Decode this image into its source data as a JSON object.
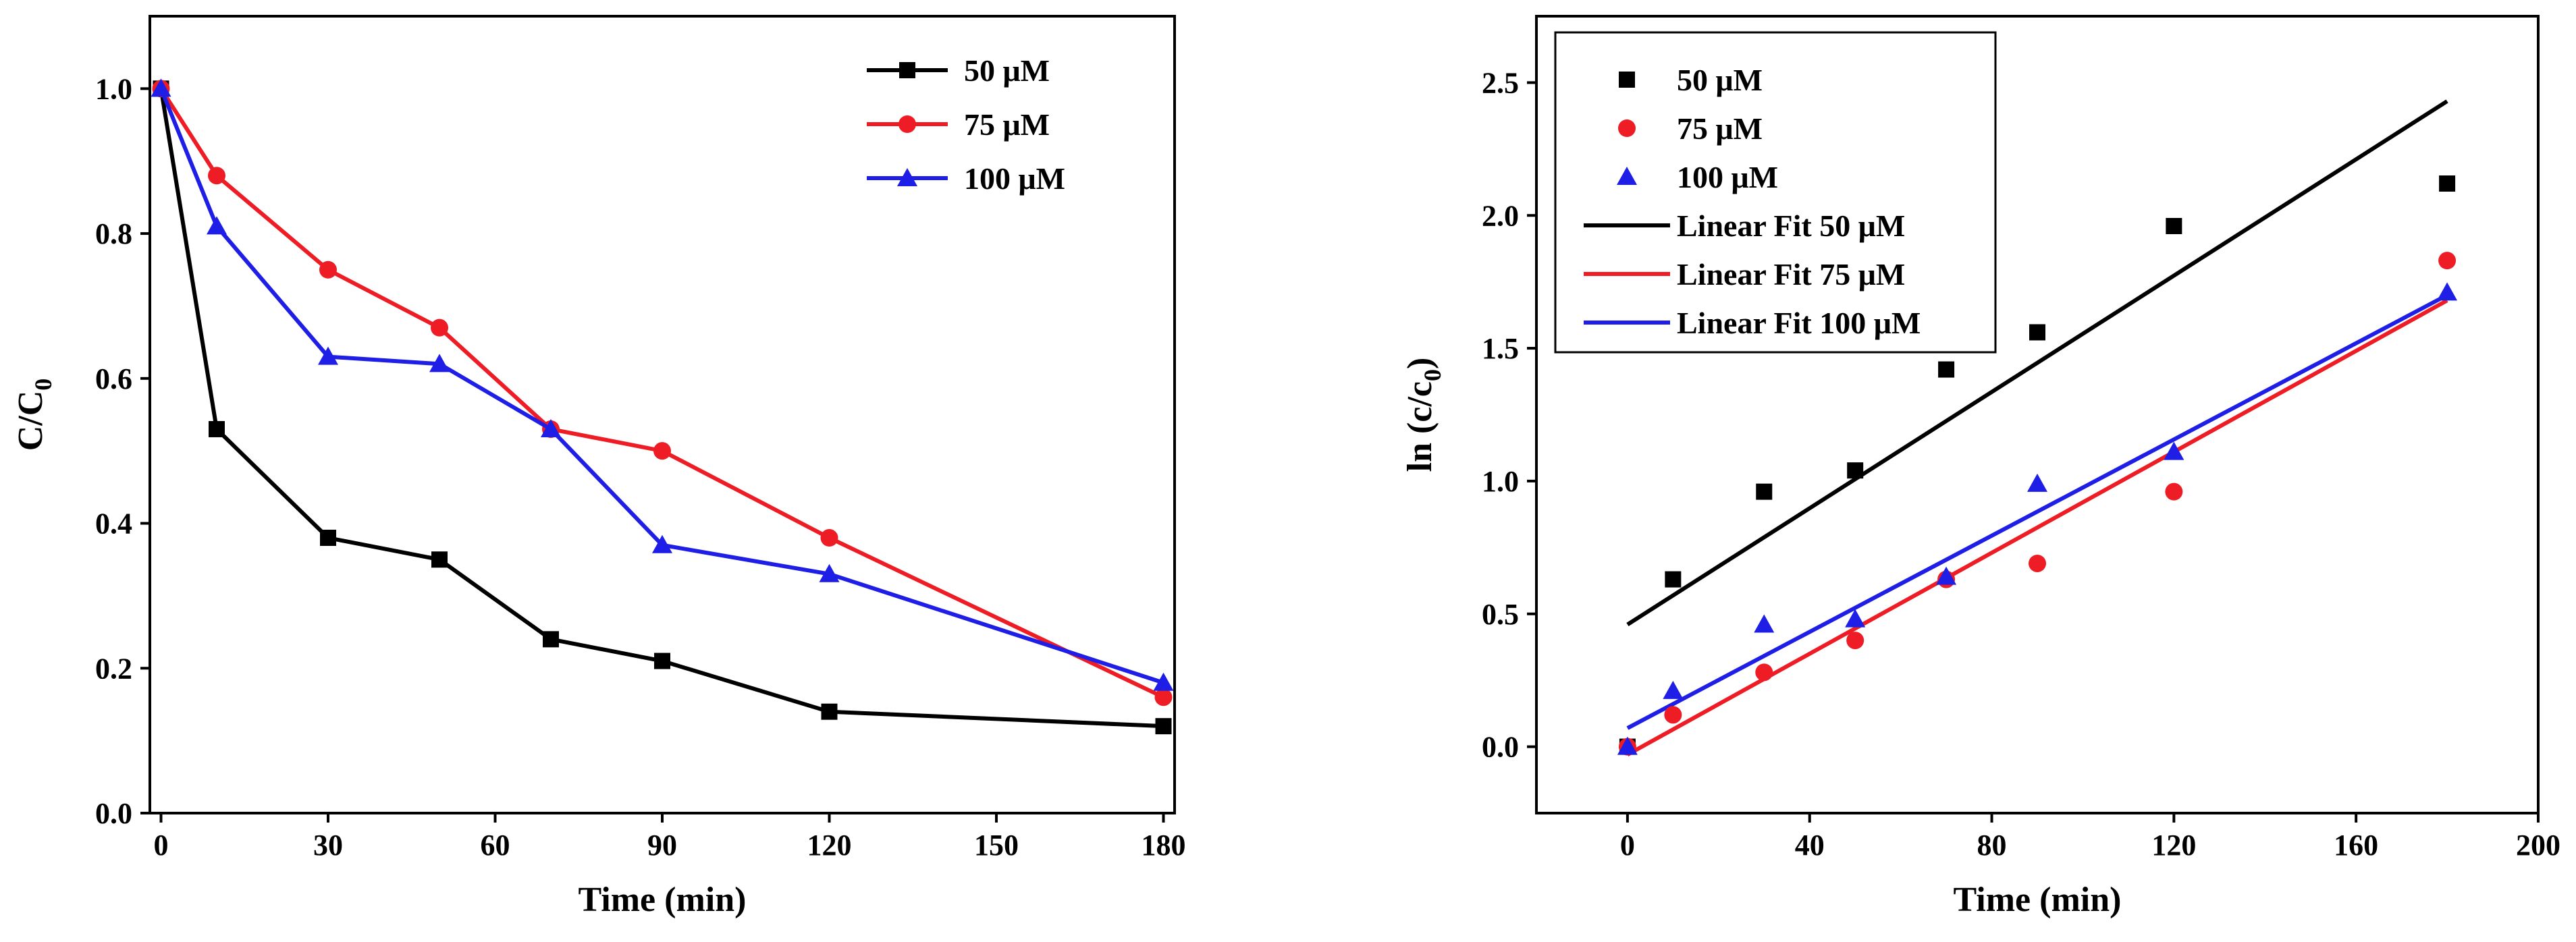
{
  "colors": {
    "black": "#000000",
    "red": "#ee1c24",
    "blue": "#1e1ee6"
  },
  "chart_data": [
    {
      "type": "line",
      "title": "",
      "xlabel": "Time (min)",
      "ylabel": {
        "main": "C/C",
        "sub": "0"
      },
      "xlim": [
        -2,
        182
      ],
      "ylim": [
        0.0,
        1.1
      ],
      "xticks": [
        0,
        30,
        60,
        90,
        120,
        150,
        180
      ],
      "xtick_labels": [
        "0",
        "30",
        "60",
        "90",
        "120",
        "150",
        "180"
      ],
      "yticks": [
        0.0,
        0.2,
        0.4,
        0.6,
        0.8,
        1.0
      ],
      "ytick_labels": [
        "0.0",
        "0.2",
        "0.4",
        "0.6",
        "0.8",
        "1.0"
      ],
      "legend_position": "top-right",
      "series": [
        {
          "name": "50 μM",
          "color": "#000000",
          "marker": "square",
          "x": [
            0,
            10,
            30,
            50,
            70,
            90,
            120,
            180
          ],
          "y": [
            1.0,
            0.53,
            0.38,
            0.35,
            0.24,
            0.21,
            0.14,
            0.12
          ]
        },
        {
          "name": "75 μM",
          "color": "#ee1c24",
          "marker": "circle",
          "x": [
            0,
            10,
            30,
            50,
            70,
            90,
            120,
            180
          ],
          "y": [
            1.0,
            0.88,
            0.75,
            0.67,
            0.53,
            0.5,
            0.38,
            0.16
          ]
        },
        {
          "name": "100 μM",
          "color": "#1e1ee6",
          "marker": "triangle",
          "x": [
            0,
            10,
            30,
            50,
            70,
            90,
            120,
            180
          ],
          "y": [
            1.0,
            0.81,
            0.63,
            0.62,
            0.53,
            0.37,
            0.33,
            0.18
          ]
        }
      ]
    },
    {
      "type": "scatter",
      "title": "",
      "xlabel": "Time (min)",
      "ylabel": {
        "main": "ln (c/c",
        "sub": "0",
        "close": ")"
      },
      "xlim": [
        -20,
        200
      ],
      "ylim": [
        -0.25,
        2.75
      ],
      "xticks": [
        0,
        40,
        80,
        120,
        160,
        200
      ],
      "xtick_labels": [
        "0",
        "40",
        "80",
        "120",
        "160",
        "200"
      ],
      "yticks": [
        0.0,
        0.5,
        1.0,
        1.5,
        2.0,
        2.5
      ],
      "ytick_labels": [
        "0.0",
        "0.5",
        "1.0",
        "1.5",
        "2.0",
        "2.5"
      ],
      "legend_position": "top-left",
      "series": [
        {
          "name": "50 μM",
          "color": "#000000",
          "marker": "square",
          "x": [
            0,
            10,
            30,
            50,
            70,
            90,
            120,
            180
          ],
          "y": [
            0.0,
            0.63,
            0.96,
            1.04,
            1.42,
            1.56,
            1.96,
            2.12
          ]
        },
        {
          "name": "75 μM",
          "color": "#ee1c24",
          "marker": "circle",
          "x": [
            0,
            10,
            30,
            50,
            70,
            90,
            120,
            180
          ],
          "y": [
            0.0,
            0.12,
            0.28,
            0.4,
            0.63,
            0.69,
            0.96,
            1.83
          ]
        },
        {
          "name": "100 μM",
          "color": "#1e1ee6",
          "marker": "triangle",
          "x": [
            0,
            10,
            30,
            50,
            70,
            90,
            120,
            180
          ],
          "y": [
            0.0,
            0.21,
            0.46,
            0.48,
            0.64,
            0.99,
            1.11,
            1.71
          ]
        }
      ],
      "fits": [
        {
          "name": "Linear Fit 50 μM",
          "color": "#000000",
          "x": [
            0,
            180
          ],
          "y": [
            0.46,
            2.43
          ]
        },
        {
          "name": "Linear Fit 75 μM",
          "color": "#ee1c24",
          "x": [
            0,
            180
          ],
          "y": [
            -0.03,
            1.68
          ]
        },
        {
          "name": "Linear Fit 100 μM",
          "color": "#1e1ee6",
          "x": [
            0,
            180
          ],
          "y": [
            0.07,
            1.7
          ]
        }
      ]
    }
  ]
}
